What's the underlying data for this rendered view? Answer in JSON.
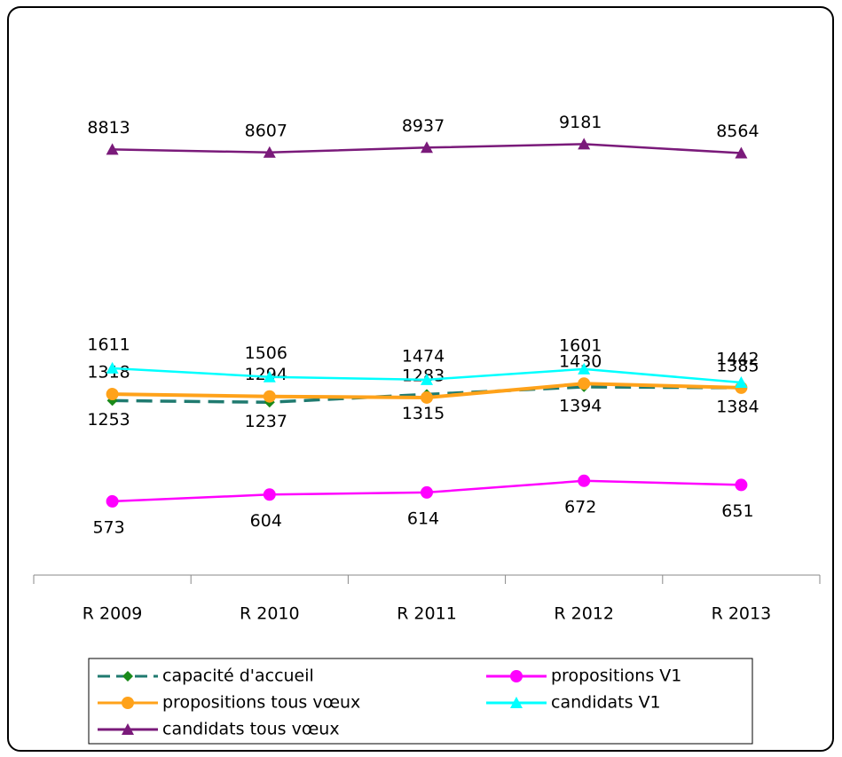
{
  "chart_data": {
    "type": "line",
    "log_scale": true,
    "ylim": [
      450,
      10000
    ],
    "categories": [
      "R 2009",
      "R 2010",
      "R 2011",
      "R 2012",
      "R 2013"
    ],
    "legend": "bottom",
    "series": [
      {
        "name": "capacité d'accueil",
        "color": "#1f7a6f",
        "marker": "diamond",
        "marker_color": "#1a8a1a",
        "dashed": true,
        "values": [
          1253,
          1237,
          1315,
          1394,
          1384
        ]
      },
      {
        "name": "propositions V1",
        "color": "#ff00ff",
        "marker": "circle",
        "marker_color": "#ff00ff",
        "dashed": false,
        "values": [
          573,
          604,
          614,
          672,
          651
        ]
      },
      {
        "name": "propositions tous vœux",
        "color": "#ffa21a",
        "marker": "circle",
        "marker_color": "#ffa21a",
        "dashed": false,
        "values": [
          1318,
          1294,
          1283,
          1430,
          1385
        ]
      },
      {
        "name": "candidats V1",
        "color": "#00ffff",
        "marker": "triangle",
        "marker_color": "#00ffff",
        "dashed": false,
        "values": [
          1611,
          1506,
          1474,
          1601,
          1442
        ]
      },
      {
        "name": "candidats tous vœux",
        "color": "#7a1a7a",
        "marker": "triangle",
        "marker_color": "#7a1a7a",
        "dashed": false,
        "values": [
          8813,
          8607,
          8937,
          9181,
          8564
        ]
      }
    ]
  }
}
